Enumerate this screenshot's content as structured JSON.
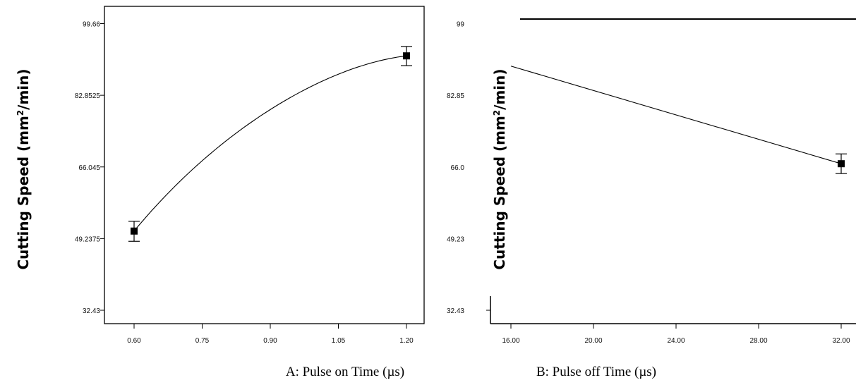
{
  "chart_data": [
    {
      "type": "line",
      "xlabel": "A: Pulse on Time (µs)",
      "ylabel_prefix": "Cutting Speed (mm",
      "ylabel_sup": "2",
      "ylabel_suffix": "/min)",
      "x_ticks": [
        "0.60",
        "0.75",
        "0.90",
        "1.05",
        "1.20"
      ],
      "y_ticks": [
        "32.43",
        "49.2375",
        "66.045",
        "82.8525",
        "99.66"
      ],
      "xlim": [
        0.6,
        1.2
      ],
      "ylim": [
        32.43,
        99.66
      ],
      "curve": {
        "x": [
          0.6,
          0.75,
          0.9,
          1.05,
          1.2
        ],
        "y": [
          51.0,
          67.5,
          79.5,
          87.8,
          92.1
        ]
      },
      "points": [
        {
          "x": 0.6,
          "y": 51.0,
          "lo": 48.6,
          "hi": 53.3
        },
        {
          "x": 1.2,
          "y": 92.1,
          "lo": 89.8,
          "hi": 94.3
        }
      ],
      "grid": false
    },
    {
      "type": "line",
      "xlabel": "B: Pulse off Time (µs)",
      "ylabel_prefix": "Cutting Speed (mm",
      "ylabel_sup": "2",
      "ylabel_suffix": "/min)",
      "x_ticks": [
        "16.00",
        "20.00",
        "24.00",
        "28.00",
        "32.00"
      ],
      "y_ticks": [
        "32.43",
        "49.23",
        "66.0",
        "82.85",
        "99"
      ],
      "xlim": [
        16,
        32
      ],
      "ylim": [
        32.43,
        99.66
      ],
      "curve": {
        "x": [
          16.0,
          32.0
        ],
        "y": [
          89.7,
          66.8
        ]
      },
      "points": [
        {
          "x": 32.0,
          "y": 66.8,
          "lo": 64.5,
          "hi": 69.1
        }
      ],
      "grid": false
    }
  ]
}
